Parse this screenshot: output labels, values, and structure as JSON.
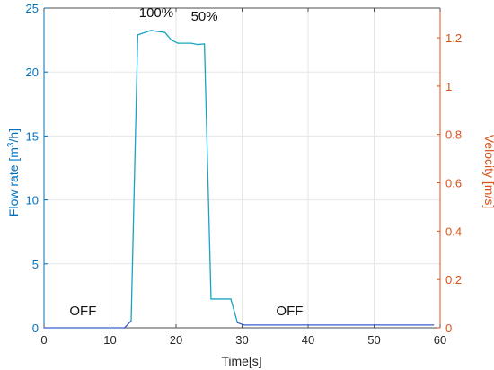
{
  "chart_data": {
    "type": "line",
    "xlabel": "Time[s]",
    "ylabel_left": "Flow rate [m³/h]",
    "ylabel_left_parts": [
      "Flow rate [m",
      "3",
      "/h]"
    ],
    "ylabel_right": "Velocity [m/s]",
    "xlim": [
      0,
      60
    ],
    "ylim_left": [
      0,
      25
    ],
    "ylim_right": [
      0,
      1.323
    ],
    "x_ticks": [
      0,
      10,
      20,
      30,
      40,
      50,
      60
    ],
    "y_left_ticks": [
      0,
      5,
      10,
      15,
      20,
      25
    ],
    "y_right_ticks": [
      0,
      0.2,
      0.4,
      0.6,
      0.8,
      1,
      1.2
    ],
    "grid": true,
    "colors": {
      "left_axis": "#0072bd",
      "right_axis": "#d95319",
      "line": "#1aa3c0",
      "line_low": "#3a5fcd",
      "grid": "#e6e6e6",
      "axis": "#4d4d4d"
    },
    "series": [
      {
        "x": [
          0,
          12.2,
          13.2,
          14.2,
          16.2,
          18.3,
          19.3,
          20.3,
          22.3,
          23.3,
          24.3,
          25.3,
          28.3,
          29.3,
          30.3,
          32.3,
          59.0
        ],
        "y": [
          0,
          0,
          0.55,
          22.9,
          23.25,
          23.1,
          22.5,
          22.25,
          22.25,
          22.15,
          22.2,
          2.25,
          2.25,
          0.4,
          0.22,
          0.22,
          0.22
        ]
      }
    ],
    "annotations": [
      {
        "text": "100%",
        "x": 17,
        "y": 24.3
      },
      {
        "text": "50%",
        "x": 24.3,
        "y": 24.0
      },
      {
        "text": "OFF",
        "x": 5.9,
        "y": 1.0
      },
      {
        "text": "OFF",
        "x": 37.2,
        "y": 1.0
      }
    ]
  }
}
